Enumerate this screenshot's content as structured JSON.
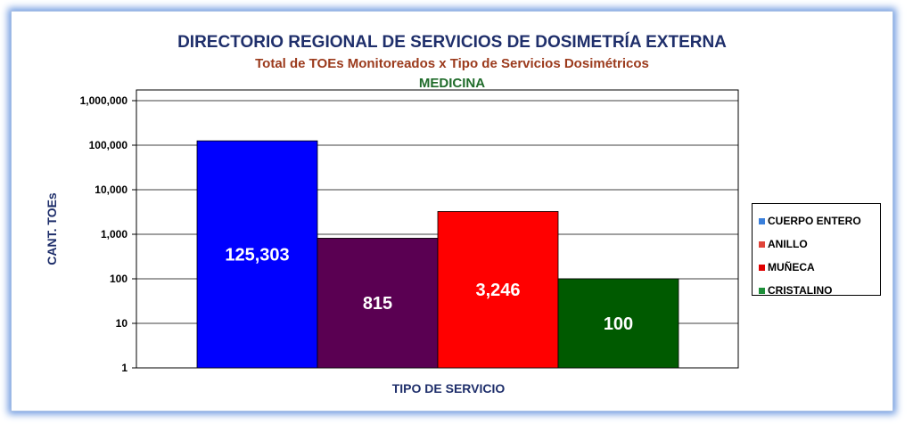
{
  "chart_data": {
    "type": "bar",
    "title": "DIRECTORIO REGIONAL DE SERVICIOS DE DOSIMETRÍA EXTERNA",
    "subtitle": "Total de TOEs Monitoreados x Tipo de Servicios Dosimétricos",
    "subtitle2": "MEDICINA",
    "xlabel": "TIPO DE SERVICIO",
    "ylabel": "CANT. TOEs",
    "yscale": "log",
    "ylim": [
      1,
      1000000
    ],
    "yticks": [
      "1,000,000",
      "100,000",
      "10,000",
      "1,000",
      "100",
      "10",
      "1"
    ],
    "series": [
      {
        "name": "CUERPO ENTERO",
        "value": 125303,
        "label": "125,303",
        "color": "#0000FF",
        "legend_color": "#3A7FDB"
      },
      {
        "name": "ANILLO",
        "value": 815,
        "label": "815",
        "color": "#5A0052",
        "legend_color": "#E0443A"
      },
      {
        "name": "MUÑECA",
        "value": 3246,
        "label": "3,246",
        "color": "#FF0000",
        "legend_color": "#E00000"
      },
      {
        "name": "CRISTALINO",
        "value": 100,
        "label": "100",
        "color": "#005A00",
        "legend_color": "#1E8F3A"
      }
    ],
    "grid": true,
    "legend_position": "right"
  }
}
